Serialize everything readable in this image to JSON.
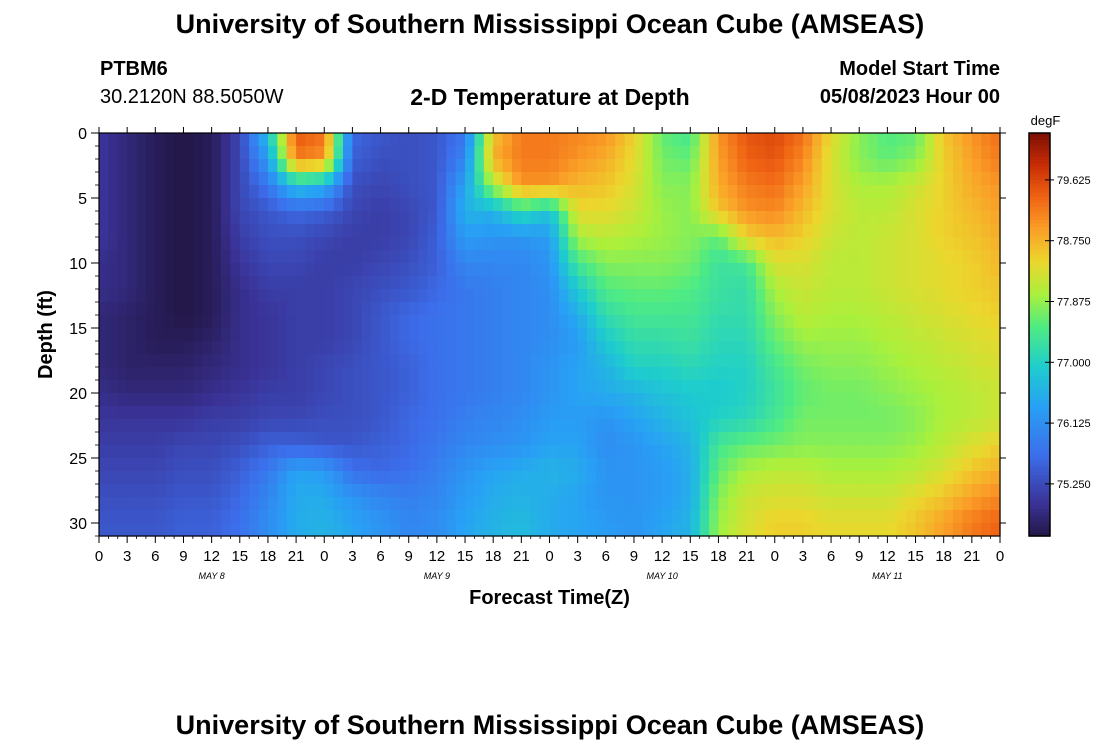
{
  "header": {
    "title": "University of Southern Mississippi Ocean Cube (AMSEAS)",
    "station": "PTBM6",
    "coordinates": "30.2120N  88.5050W",
    "subtitle": "2-D Temperature at Depth",
    "start_label": "Model Start Time",
    "start_value": "05/08/2023 Hour 00"
  },
  "footer": {
    "title": "University of Southern Mississippi Ocean Cube (AMSEAS)"
  },
  "chart_data": {
    "type": "heatmap",
    "title": "2-D Temperature at Depth",
    "xlabel": "Forecast Time(Z)",
    "ylabel": "Depth (ft)",
    "x_ticks": [
      "0",
      "3",
      "6",
      "9",
      "12",
      "15",
      "18",
      "21",
      "0",
      "3",
      "6",
      "9",
      "12",
      "15",
      "18",
      "21",
      "0",
      "3",
      "6",
      "9",
      "12",
      "15",
      "18",
      "21",
      "0",
      "3",
      "6",
      "9",
      "12",
      "15",
      "18",
      "21",
      "0"
    ],
    "day_labels": [
      {
        "label": "MAY 8",
        "x_hours": 12
      },
      {
        "label": "MAY 9",
        "x_hours": 36
      },
      {
        "label": "MAY 10",
        "x_hours": 60
      },
      {
        "label": "MAY 11",
        "x_hours": 84
      }
    ],
    "xlim_hours": [
      0,
      96
    ],
    "y_ticks": [
      0,
      5,
      10,
      15,
      20,
      25,
      30
    ],
    "ylim_ft": [
      0,
      31
    ],
    "colorbar": {
      "unit": "degF",
      "range": [
        74.5,
        80.3
      ],
      "ticks": [
        "75.250",
        "76.125",
        "77.000",
        "77.875",
        "78.750",
        "79.625"
      ],
      "tick_values": [
        75.25,
        76.125,
        77.0,
        77.875,
        78.75,
        79.625
      ]
    },
    "depth_levels_ft": [
      0,
      2,
      4,
      6,
      8,
      10,
      12,
      14,
      16,
      18,
      20,
      22,
      24,
      26,
      28,
      30
    ],
    "time_hours": [
      0,
      3,
      6,
      9,
      12,
      15,
      18,
      21,
      24,
      27,
      30,
      33,
      36,
      39,
      42,
      45,
      48,
      51,
      54,
      57,
      60,
      63,
      66,
      69,
      72,
      75,
      78,
      81,
      84,
      87,
      90,
      93,
      96
    ],
    "temperature_degF": [
      [
        75.0,
        74.8,
        74.6,
        74.5,
        74.6,
        75.2,
        76.8,
        79.5,
        79.3,
        75.6,
        75.4,
        75.3,
        75.4,
        75.8,
        78.6,
        79.2,
        79.2,
        79.1,
        79.0,
        78.5,
        77.6,
        77.4,
        79.0,
        79.5,
        79.6,
        79.3,
        78.4,
        77.8,
        77.5,
        77.6,
        78.6,
        79.0,
        79.3
      ],
      [
        75.0,
        74.8,
        74.6,
        74.5,
        74.6,
        75.2,
        76.3,
        79.2,
        79.0,
        75.5,
        75.3,
        75.3,
        75.4,
        76.0,
        78.8,
        79.2,
        79.2,
        79.0,
        78.8,
        78.4,
        77.7,
        77.6,
        78.9,
        79.4,
        79.5,
        79.1,
        78.3,
        77.8,
        77.6,
        77.8,
        78.5,
        78.9,
        79.2
      ],
      [
        75.0,
        74.8,
        74.6,
        74.5,
        74.6,
        75.2,
        75.8,
        76.8,
        76.6,
        75.3,
        75.2,
        75.3,
        75.4,
        76.4,
        78.0,
        79.0,
        79.0,
        78.7,
        78.6,
        78.3,
        77.8,
        77.8,
        78.8,
        79.2,
        79.3,
        78.9,
        78.3,
        78.0,
        78.0,
        78.2,
        78.5,
        78.8,
        79.0
      ],
      [
        75.0,
        74.8,
        74.6,
        74.5,
        74.6,
        75.2,
        75.4,
        75.6,
        75.5,
        75.2,
        75.1,
        75.2,
        75.4,
        76.6,
        76.6,
        77.2,
        76.8,
        78.4,
        78.4,
        78.2,
        77.9,
        77.8,
        78.6,
        79.0,
        79.1,
        78.7,
        78.3,
        78.1,
        78.1,
        78.3,
        78.5,
        78.7,
        78.9
      ],
      [
        75.0,
        74.8,
        74.6,
        74.5,
        74.6,
        75.1,
        75.3,
        75.3,
        75.2,
        75.1,
        75.1,
        75.2,
        75.5,
        76.3,
        76.2,
        76.2,
        76.3,
        78.0,
        78.1,
        78.0,
        77.9,
        77.8,
        77.6,
        78.5,
        78.7,
        78.5,
        78.2,
        78.1,
        78.2,
        78.3,
        78.5,
        78.6,
        78.8
      ],
      [
        74.9,
        74.8,
        74.6,
        74.5,
        74.6,
        75.0,
        75.2,
        75.2,
        75.1,
        75.1,
        75.2,
        75.3,
        75.5,
        76.0,
        76.0,
        76.0,
        76.2,
        77.4,
        77.8,
        77.8,
        77.8,
        77.7,
        77.3,
        77.4,
        78.3,
        78.3,
        78.1,
        78.1,
        78.2,
        78.3,
        78.4,
        78.5,
        78.7
      ],
      [
        74.9,
        74.8,
        74.6,
        74.5,
        74.6,
        74.9,
        75.1,
        75.1,
        75.1,
        75.2,
        75.3,
        75.4,
        75.6,
        75.8,
        75.9,
        76.0,
        76.1,
        76.9,
        77.5,
        77.6,
        77.6,
        77.5,
        77.3,
        77.2,
        78.0,
        78.2,
        78.1,
        78.1,
        78.2,
        78.3,
        78.4,
        78.5,
        78.6
      ],
      [
        74.8,
        74.7,
        74.6,
        74.5,
        74.6,
        74.9,
        75.0,
        75.1,
        75.1,
        75.2,
        75.4,
        75.6,
        75.7,
        75.8,
        75.9,
        76.0,
        76.1,
        76.5,
        77.2,
        77.4,
        77.4,
        77.4,
        77.2,
        77.2,
        77.8,
        78.1,
        78.0,
        78.0,
        78.1,
        78.2,
        78.3,
        78.4,
        78.5
      ],
      [
        74.8,
        74.7,
        74.6,
        74.6,
        74.7,
        74.9,
        75.0,
        75.1,
        75.1,
        75.2,
        75.4,
        75.6,
        75.7,
        75.8,
        75.9,
        76.0,
        76.1,
        76.3,
        76.9,
        77.2,
        77.2,
        77.3,
        77.1,
        77.1,
        77.6,
        77.9,
        77.9,
        77.9,
        78.0,
        78.1,
        78.2,
        78.3,
        78.4
      ],
      [
        74.8,
        74.7,
        74.7,
        74.7,
        74.8,
        74.9,
        75.0,
        75.1,
        75.2,
        75.3,
        75.4,
        75.5,
        75.7,
        75.8,
        75.9,
        76.0,
        76.2,
        76.4,
        76.6,
        77.0,
        77.0,
        77.1,
        77.0,
        77.0,
        77.4,
        77.7,
        77.8,
        77.8,
        77.9,
        78.0,
        78.1,
        78.2,
        78.3
      ],
      [
        74.9,
        74.8,
        74.8,
        74.8,
        74.9,
        75.0,
        75.1,
        75.1,
        75.2,
        75.3,
        75.4,
        75.5,
        75.7,
        75.8,
        75.9,
        76.0,
        76.2,
        76.4,
        76.5,
        76.6,
        76.8,
        76.9,
        76.9,
        77.0,
        77.3,
        77.6,
        77.7,
        77.7,
        77.8,
        77.9,
        78.0,
        78.1,
        78.2
      ],
      [
        75.0,
        75.0,
        75.0,
        75.0,
        75.1,
        75.1,
        75.2,
        75.2,
        75.3,
        75.3,
        75.4,
        75.6,
        75.7,
        75.9,
        76.0,
        76.1,
        76.3,
        76.3,
        76.2,
        76.4,
        76.6,
        76.8,
        77.0,
        77.1,
        77.4,
        77.7,
        77.7,
        77.7,
        77.7,
        77.8,
        78.0,
        78.1,
        78.2
      ],
      [
        75.1,
        75.1,
        75.1,
        75.2,
        75.2,
        75.3,
        75.5,
        75.5,
        75.4,
        75.4,
        75.5,
        75.6,
        75.8,
        76.0,
        76.1,
        76.2,
        76.4,
        76.4,
        76.1,
        76.2,
        76.4,
        76.6,
        77.4,
        77.6,
        77.7,
        77.8,
        77.8,
        77.8,
        77.8,
        77.9,
        78.1,
        78.3,
        78.5
      ],
      [
        75.2,
        75.2,
        75.2,
        75.3,
        75.3,
        75.5,
        75.8,
        76.4,
        76.3,
        75.7,
        75.6,
        75.7,
        75.9,
        76.2,
        76.4,
        76.5,
        76.6,
        76.5,
        76.2,
        76.2,
        76.3,
        76.5,
        77.6,
        78.0,
        78.1,
        78.1,
        78.0,
        78.0,
        78.0,
        78.1,
        78.3,
        78.6,
        78.8
      ],
      [
        75.3,
        75.3,
        75.3,
        75.4,
        75.4,
        75.6,
        76.0,
        76.5,
        76.5,
        76.2,
        76.0,
        75.9,
        76.0,
        76.3,
        76.5,
        76.6,
        76.5,
        76.4,
        76.2,
        76.2,
        76.3,
        76.5,
        77.8,
        78.2,
        78.3,
        78.3,
        78.2,
        78.2,
        78.2,
        78.4,
        78.6,
        78.9,
        79.1
      ],
      [
        75.4,
        75.4,
        75.4,
        75.5,
        75.5,
        75.7,
        76.1,
        76.5,
        76.6,
        76.4,
        76.2,
        76.0,
        76.1,
        76.4,
        76.6,
        76.7,
        76.5,
        76.4,
        76.3,
        76.2,
        76.4,
        76.6,
        77.9,
        78.3,
        78.5,
        78.5,
        78.4,
        78.4,
        78.4,
        78.6,
        78.9,
        79.2,
        79.4
      ]
    ]
  }
}
